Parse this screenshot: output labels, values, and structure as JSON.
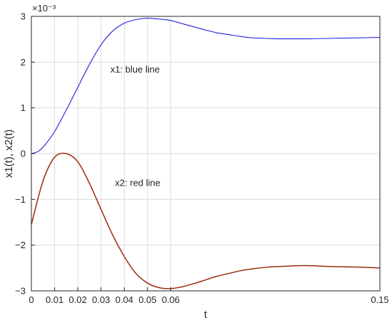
{
  "chart_data": {
    "type": "line",
    "title": "",
    "xlabel": "t",
    "ylabel": "x1(t), x2(t)",
    "xlim": [
      0,
      0.15
    ],
    "ylim": [
      -0.003,
      0.003
    ],
    "y_exponent_label": "×10⁻³",
    "x_ticks": [
      0,
      0.01,
      0.02,
      0.03,
      0.04,
      0.05,
      0.06,
      0.15
    ],
    "x_tick_labels": [
      "0",
      "0.01",
      "0.02",
      "0.03",
      "0.04",
      "0.05",
      "0.06",
      "0.15"
    ],
    "y_ticks": [
      -0.003,
      -0.002,
      -0.001,
      0,
      0.001,
      0.002,
      0.003
    ],
    "y_tick_labels": [
      "−3",
      "−2",
      "−1",
      "0",
      "1",
      "2",
      "3"
    ],
    "grid": true,
    "series": [
      {
        "name": "x1",
        "color": "#1f1fdd",
        "x": [
          0,
          0.003,
          0.006,
          0.01,
          0.015,
          0.02,
          0.025,
          0.03,
          0.035,
          0.04,
          0.045,
          0.05,
          0.055,
          0.06,
          0.065,
          0.07,
          0.075,
          0.08,
          0.085,
          0.09,
          0.095,
          0.1,
          0.105,
          0.11,
          0.12,
          0.13,
          0.14,
          0.15
        ],
        "y": [
          0,
          5e-05,
          0.0002,
          0.00048,
          0.00095,
          0.00145,
          0.00195,
          0.00238,
          0.00268,
          0.00285,
          0.00293,
          0.00296,
          0.00294,
          0.00291,
          0.00284,
          0.00277,
          0.0027,
          0.00264,
          0.0026,
          0.00256,
          0.00253,
          0.00252,
          0.00251,
          0.00251,
          0.00251,
          0.00252,
          0.00253,
          0.00254
        ]
      },
      {
        "name": "x2",
        "color": "#9e2a0a",
        "x": [
          0,
          0.005,
          0.01,
          0.015,
          0.02,
          0.025,
          0.03,
          0.035,
          0.04,
          0.045,
          0.05,
          0.055,
          0.06,
          0.065,
          0.07,
          0.075,
          0.08,
          0.085,
          0.09,
          0.095,
          0.1,
          0.105,
          0.11,
          0.115,
          0.12,
          0.125,
          0.13,
          0.14,
          0.15
        ],
        "y": [
          -0.00155,
          -0.0006,
          -8e-05,
          0,
          -0.00018,
          -0.00065,
          -0.00122,
          -0.00178,
          -0.00225,
          -0.00262,
          -0.00283,
          -0.00293,
          -0.00295,
          -0.00291,
          -0.00284,
          -0.00276,
          -0.00268,
          -0.00262,
          -0.00256,
          -0.00252,
          -0.00249,
          -0.00247,
          -0.00246,
          -0.00245,
          -0.00245,
          -0.00246,
          -0.00247,
          -0.00248,
          -0.0025
        ]
      }
    ],
    "annotations": [
      {
        "text": "x1: blue line",
        "x": 0.034,
        "y": 0.00177
      },
      {
        "text": "x2: red line",
        "x": 0.036,
        "y": -0.00071
      }
    ]
  }
}
